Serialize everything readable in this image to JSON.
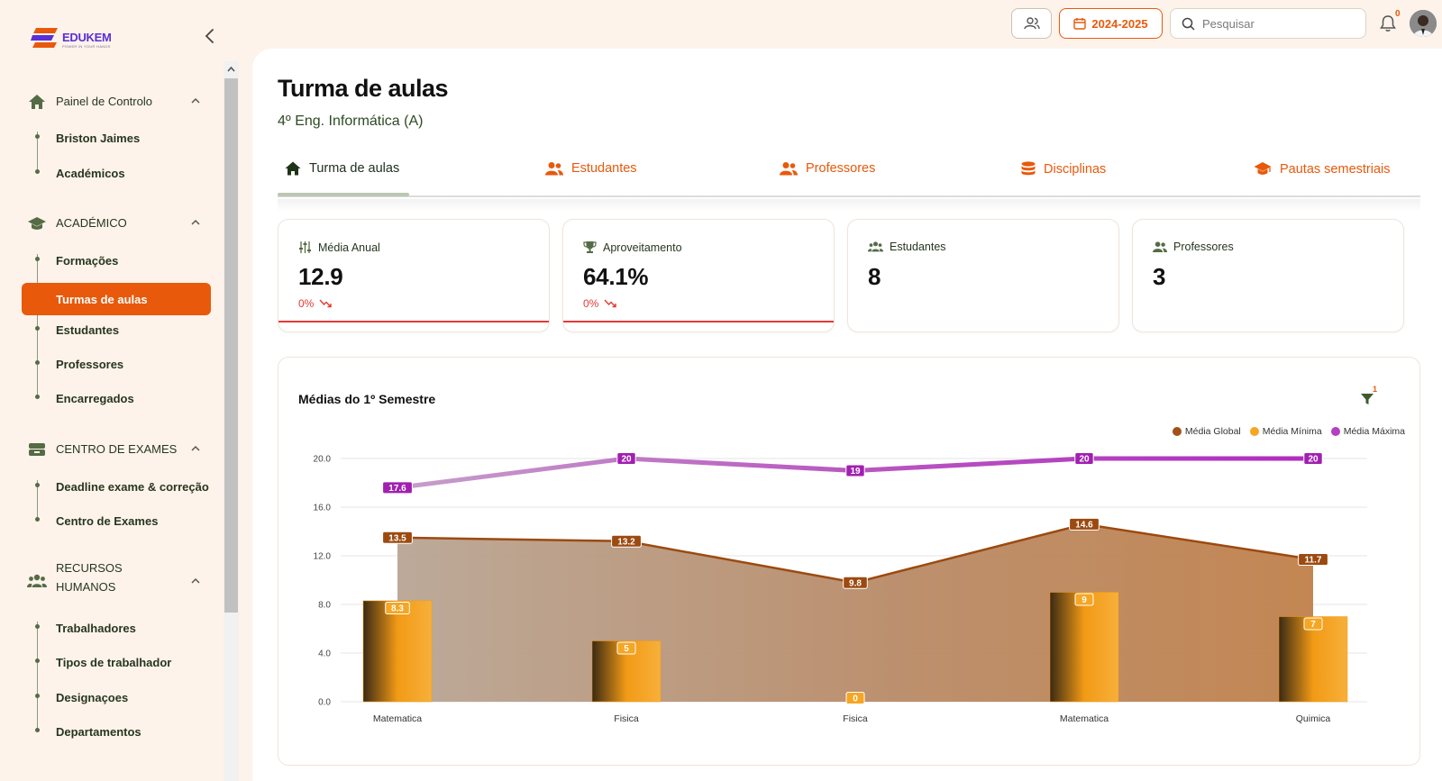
{
  "brand": {
    "name": "EDUKEM",
    "tagline": "POWER IN YOUR HANDS"
  },
  "sidebar": {
    "sections": [
      {
        "label": "Painel de Controlo",
        "icon": "home-icon",
        "items": [
          "Briston Jaimes",
          "Académicos"
        ]
      },
      {
        "label": "ACADÉMICO",
        "icon": "graduation-cap-icon",
        "items": [
          "Formações",
          "Turmas de aulas",
          "Estudantes",
          "Professores",
          "Encarregados"
        ]
      },
      {
        "label": "CENTRO DE EXAMES",
        "icon": "exam-box-icon",
        "items": [
          "Deadline exame & correção",
          "Centro de Exames"
        ]
      },
      {
        "label_line1": "RECURSOS",
        "label_line2": "HUMANOS",
        "icon": "users-icon",
        "items": [
          "Trabalhadores",
          "Tipos de trabalhador",
          "Designaçoes",
          "Departamentos"
        ]
      }
    ],
    "active_item": "Turmas de aulas"
  },
  "topbar": {
    "year": "2024-2025",
    "search_placeholder": "Pesquisar",
    "notifications": "0"
  },
  "page": {
    "title": "Turma de aulas",
    "subtitle": "4º Eng. Informática (A)"
  },
  "tabs": [
    {
      "label": "Turma de aulas",
      "active": true
    },
    {
      "label": "Estudantes",
      "active": false
    },
    {
      "label": "Professores",
      "active": false
    },
    {
      "label": "Disciplinas",
      "active": false
    },
    {
      "label": "Pautas semestriais",
      "active": false
    }
  ],
  "stats": [
    {
      "label": "Média Anual",
      "value": "12.9",
      "trend": "0%",
      "icon": "sliders-icon"
    },
    {
      "label": "Aproveitamento",
      "value": "64.1%",
      "trend": "0%",
      "icon": "trophy-icon"
    },
    {
      "label": "Estudantes",
      "value": "8",
      "icon": "users-icon"
    },
    {
      "label": "Professores",
      "value": "3",
      "icon": "users-icon"
    }
  ],
  "chart": {
    "title": "Médias do 1º Semestre",
    "filter_count": "1"
  },
  "chart_data": {
    "type": "bar",
    "categories": [
      "Matematica",
      "Fisica",
      "Fisica",
      "Matematica",
      "Quimica"
    ],
    "series": [
      {
        "name": "Média Global",
        "type": "area",
        "color": "#a0521a",
        "values": [
          13.5,
          13.2,
          9.8,
          14.6,
          11.7
        ]
      },
      {
        "name": "Média Mínima",
        "type": "bar",
        "color": "#f5a623",
        "values": [
          8.3,
          5,
          0,
          9,
          7
        ]
      },
      {
        "name": "Média Máxima",
        "type": "line",
        "color": "#b43fc1",
        "values": [
          17.6,
          20,
          19,
          20,
          20
        ]
      }
    ],
    "yticks": [
      "0.0",
      "4.0",
      "8.0",
      "12.0",
      "16.0",
      "20.0"
    ],
    "ylim": [
      0,
      20
    ],
    "legend": "top-right",
    "grid": true
  }
}
